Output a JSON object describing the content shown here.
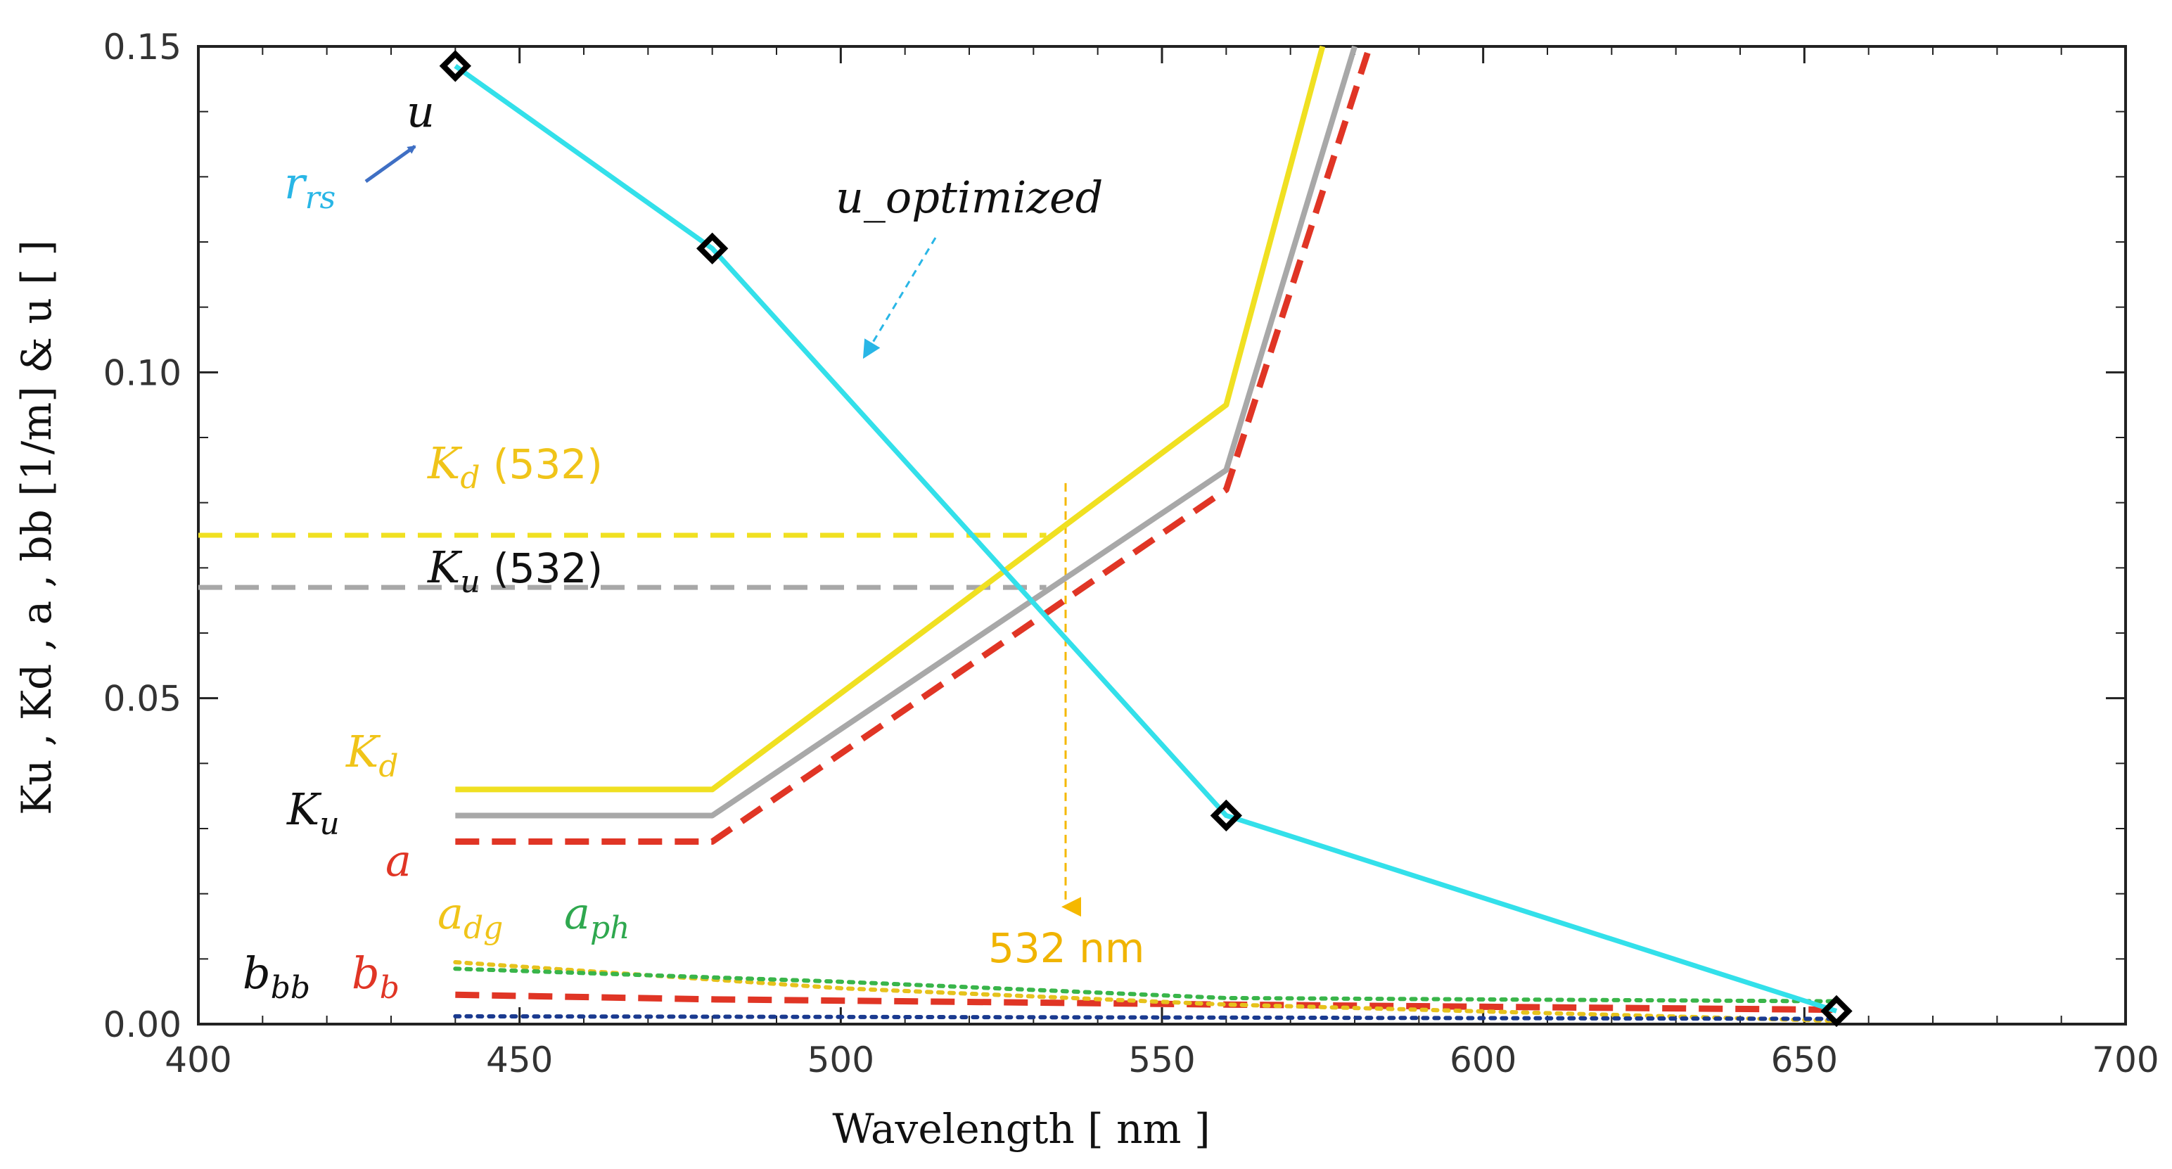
{
  "chart_data": {
    "type": "line",
    "title": "",
    "xlabel": "Wavelength [ nm ]",
    "ylabel": "Ku , Kd , a , bb [1/m] & u [ ]",
    "xlim": [
      400,
      700
    ],
    "ylim": [
      0,
      0.15
    ],
    "x_ticks": [
      "400",
      "450",
      "500",
      "550",
      "600",
      "650",
      "700"
    ],
    "y_ticks": [
      "0.00",
      "0.05",
      "0.10",
      "0.15"
    ],
    "series": [
      {
        "name": "u",
        "style": "solid",
        "color": "#33e0ea",
        "markers": "diamond",
        "x": [
          440,
          480,
          560,
          655
        ],
        "y": [
          0.147,
          0.119,
          0.032,
          0.002
        ]
      },
      {
        "name": "Kd",
        "style": "solid",
        "color": "#f0e021",
        "x": [
          440,
          480,
          560,
          575
        ],
        "y": [
          0.036,
          0.036,
          0.095,
          0.15
        ]
      },
      {
        "name": "Ku",
        "style": "solid",
        "color": "#a8a8a8",
        "x": [
          440,
          480,
          560,
          580
        ],
        "y": [
          0.032,
          0.032,
          0.085,
          0.15
        ]
      },
      {
        "name": "a",
        "style": "dashed",
        "color": "#e03525",
        "x": [
          440,
          480,
          560,
          582
        ],
        "y": [
          0.028,
          0.028,
          0.082,
          0.149
        ]
      },
      {
        "name": "bb",
        "style": "dashed",
        "color": "#e03525",
        "x": [
          440,
          480,
          560,
          655
        ],
        "y": [
          0.0045,
          0.0038,
          0.003,
          0.0022
        ]
      },
      {
        "name": "adg",
        "style": "dotted",
        "color": "#e6c21c",
        "x": [
          440,
          500,
          560,
          655
        ],
        "y": [
          0.0095,
          0.0055,
          0.003,
          0.0005
        ]
      },
      {
        "name": "aph",
        "style": "dotted",
        "color": "#39b54a",
        "x": [
          440,
          500,
          560,
          655
        ],
        "y": [
          0.0085,
          0.0065,
          0.004,
          0.0035
        ]
      },
      {
        "name": "bbb",
        "style": "dotted",
        "color": "#1a3a8f",
        "x": [
          440,
          560,
          655
        ],
        "y": [
          0.0012,
          0.001,
          0.0008
        ]
      }
    ],
    "reference_lines": [
      {
        "name": "Kd (532)",
        "orientation": "horizontal",
        "value": 0.075,
        "x_range": [
          400,
          532
        ],
        "color": "#f0e021",
        "style": "dashed"
      },
      {
        "name": "Ku (532)",
        "orientation": "horizontal",
        "value": 0.067,
        "x_range": [
          400,
          532
        ],
        "color": "#a8a8a8",
        "style": "dashed"
      },
      {
        "name": "532 nm",
        "orientation": "vertical",
        "value": 535,
        "y_range": [
          0.083,
          0.018
        ],
        "color": "#f5b800",
        "style": "dashed-arrow"
      }
    ],
    "annotations": {
      "u": "u",
      "rrs": "r",
      "rrs_sub": "rs",
      "u_optimized": "u_optimized",
      "kd532": "K",
      "kd532_sub": "d",
      "kd532_suffix": "(532)",
      "ku532": "K",
      "ku532_sub": "u",
      "ku532_suffix": "(532)",
      "kd": "K",
      "kd_sub": "d",
      "ku": "K",
      "ku_sub": "u",
      "a": "a",
      "adg": "a",
      "adg_sub": "dg",
      "aph": "a",
      "aph_sub": "ph",
      "bbb": "b",
      "bbb_sub": "bb",
      "bb": "b",
      "bb_sub": "b",
      "nm532": "532 nm"
    },
    "grid": false,
    "legend": "none"
  },
  "colors": {
    "cyan": "#33e0ea",
    "yellow": "#f0e021",
    "gray": "#a8a8a8",
    "red": "#e03525",
    "orange": "#f5b800",
    "green": "#2fa84f",
    "blue_arrow": "#3f6fc4",
    "cyan_text": "#29b6e6",
    "dark": "#111111"
  }
}
